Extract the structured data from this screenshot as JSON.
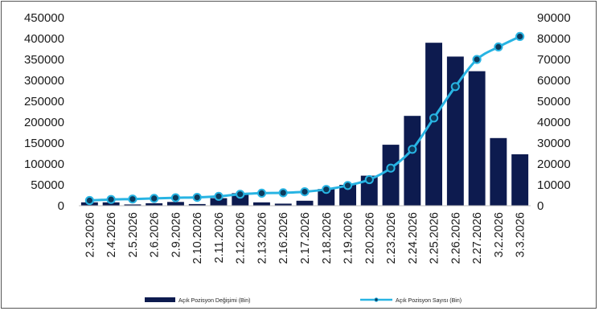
{
  "chart_data": {
    "type": "bar+line",
    "categories": [
      "2.3.2026",
      "2.4.2026",
      "2.5.2026",
      "2.6.2026",
      "2.9.2026",
      "2.10.2026",
      "2.11.2026",
      "2.12.2026",
      "2.13.2026",
      "2.16.2026",
      "2.17.2026",
      "2.18.2026",
      "2.19.2026",
      "2.20.2026",
      "2.23.2026",
      "2.24.2026",
      "2.25.2026",
      "2.26.2026",
      "2.27.2026",
      "3.2.2026",
      "3.3.2026"
    ],
    "series": [
      {
        "name": "Açık Pozisyon Değişimi (Bin)",
        "type": "bar",
        "axis": "left",
        "color": "#0d1b4f",
        "values": [
          8000,
          8000,
          3000,
          6000,
          9000,
          4000,
          18000,
          30000,
          8000,
          5000,
          12000,
          40000,
          50000,
          72000,
          146000,
          215000,
          390000,
          357000,
          322000,
          162000,
          123000
        ]
      },
      {
        "name": "Açık Pozisyon Sayısı (Bin)",
        "type": "line",
        "axis": "right",
        "color": "#28b4e3",
        "marker_color": "#0d3a5c",
        "values": [
          2500,
          3000,
          3200,
          3500,
          3800,
          4000,
          4500,
          5500,
          6000,
          6200,
          6700,
          7800,
          9700,
          12500,
          18000,
          27000,
          42000,
          57000,
          70000,
          76000,
          81000
        ]
      }
    ],
    "ylim_left": [
      0,
      450000
    ],
    "ylim_right": [
      0,
      90000
    ],
    "yticks_left": [
      "0",
      "50000",
      "100000",
      "150000",
      "200000",
      "250000",
      "300000",
      "350000",
      "400000",
      "450000"
    ],
    "yticks_right": [
      "0",
      "10000",
      "20000",
      "30000",
      "40000",
      "50000",
      "60000",
      "70000",
      "80000",
      "90000"
    ],
    "grid": false,
    "legend": "bottom"
  }
}
